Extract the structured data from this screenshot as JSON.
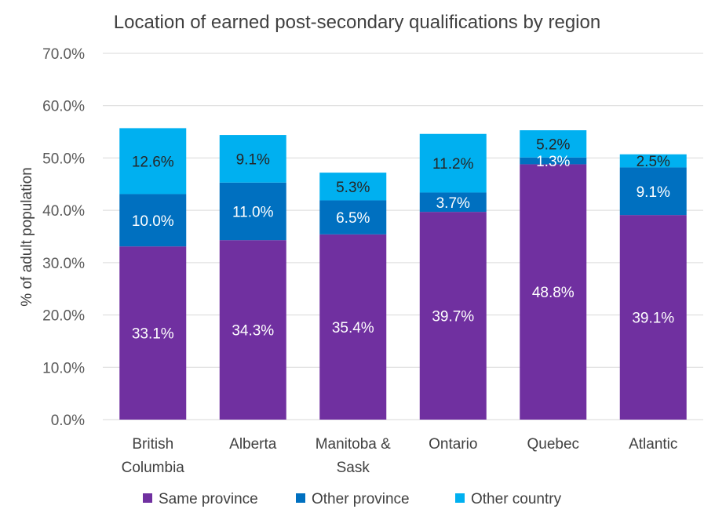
{
  "chart_data": {
    "type": "bar",
    "stacked": true,
    "title": "Location of earned post-secondary qualifications by region",
    "ylabel": "% of adult population",
    "xlabel": "",
    "ylim": [
      0,
      70
    ],
    "ytick_step": 10,
    "ytick_labels": [
      "0.0%",
      "10.0%",
      "20.0%",
      "30.0%",
      "40.0%",
      "50.0%",
      "60.0%",
      "70.0%"
    ],
    "grid": true,
    "legend_position": "bottom",
    "categories": [
      [
        "British",
        "Columbia"
      ],
      [
        "Alberta"
      ],
      [
        "Manitoba &",
        "Sask"
      ],
      [
        "Ontario"
      ],
      [
        "Quebec"
      ],
      [
        "Atlantic"
      ]
    ],
    "series": [
      {
        "name": "Same province",
        "color": "#7030a0",
        "label_color": "#ffffff",
        "values": [
          33.1,
          34.3,
          35.4,
          39.7,
          48.8,
          39.1
        ],
        "labels": [
          "33.1%",
          "34.3%",
          "35.4%",
          "39.7%",
          "48.8%",
          "39.1%"
        ]
      },
      {
        "name": "Other province",
        "color": "#0070c0",
        "label_color": "#ffffff",
        "values": [
          10.0,
          11.0,
          6.5,
          3.7,
          1.3,
          9.1
        ],
        "labels": [
          "10.0%",
          "11.0%",
          "6.5%",
          "3.7%",
          "1.3%",
          "9.1%"
        ]
      },
      {
        "name": "Other country",
        "color": "#00b0f0",
        "label_color": "#262626",
        "values": [
          12.6,
          9.1,
          5.3,
          11.2,
          5.2,
          2.5
        ],
        "labels": [
          "12.6%",
          "9.1%",
          "5.3%",
          "11.2%",
          "5.2%",
          "2.5%"
        ]
      }
    ]
  }
}
